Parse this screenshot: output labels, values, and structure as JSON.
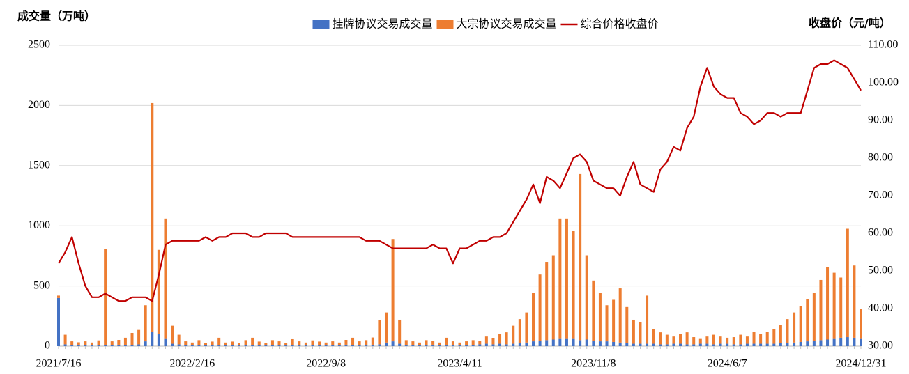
{
  "chart_data": {
    "type": "combo",
    "stacked": true,
    "legend": "top",
    "grid": true,
    "y_label": "成交量（万吨）",
    "y2_label": "收盘价（元/吨）",
    "categories": [
      "2021/7/16",
      null,
      null,
      null,
      null,
      null,
      null,
      null,
      null,
      null,
      null,
      null,
      null,
      null,
      null,
      null,
      null,
      null,
      null,
      null,
      "2022/2/16",
      null,
      null,
      null,
      null,
      null,
      null,
      null,
      null,
      null,
      null,
      null,
      null,
      null,
      null,
      null,
      null,
      null,
      null,
      null,
      "2022/9/8",
      null,
      null,
      null,
      null,
      null,
      null,
      null,
      null,
      null,
      null,
      null,
      null,
      null,
      null,
      null,
      null,
      null,
      null,
      null,
      "2023/4/11",
      null,
      null,
      null,
      null,
      null,
      null,
      null,
      null,
      null,
      null,
      null,
      null,
      null,
      null,
      null,
      null,
      null,
      null,
      null,
      "2023/11/8",
      null,
      null,
      null,
      null,
      null,
      null,
      null,
      null,
      null,
      null,
      null,
      null,
      null,
      null,
      null,
      null,
      null,
      null,
      null,
      "2024/6/7",
      null,
      null,
      null,
      null,
      null,
      null,
      null,
      null,
      null,
      null,
      null,
      null,
      null,
      null,
      null,
      null,
      null,
      null,
      null,
      "2024/12/31"
    ],
    "ylim": [
      0,
      2500
    ],
    "yticks": [
      0,
      500,
      1000,
      1500,
      2000,
      2500
    ],
    "y2lim": [
      30,
      110
    ],
    "y2ticks": [
      {
        "value": 30,
        "label": "30.00"
      },
      {
        "value": 40,
        "label": "40.00"
      },
      {
        "value": 50,
        "label": "50.00"
      },
      {
        "value": 60,
        "label": "60.00"
      },
      {
        "value": 70,
        "label": "70.00"
      },
      {
        "value": 80,
        "label": "80.00"
      },
      {
        "value": 90,
        "label": "90.00"
      },
      {
        "value": 100,
        "label": "100.00"
      },
      {
        "value": 110,
        "label": "110.00"
      }
    ],
    "series": [
      {
        "name": "挂牌协议交易成交量",
        "type": "bar",
        "color": "#4472c4",
        "values": [
          400,
          15,
          10,
          12,
          10,
          10,
          8,
          10,
          10,
          12,
          10,
          10,
          15,
          40,
          120,
          100,
          60,
          20,
          15,
          10,
          10,
          10,
          8,
          8,
          10,
          10,
          8,
          8,
          10,
          10,
          8,
          8,
          10,
          10,
          8,
          8,
          10,
          10,
          8,
          8,
          10,
          10,
          10,
          12,
          10,
          10,
          10,
          12,
          15,
          30,
          40,
          20,
          10,
          10,
          10,
          10,
          12,
          10,
          10,
          10,
          10,
          10,
          10,
          15,
          20,
          15,
          20,
          15,
          20,
          25,
          30,
          40,
          45,
          50,
          55,
          60,
          60,
          60,
          50,
          55,
          45,
          40,
          40,
          35,
          30,
          25,
          20,
          20,
          20,
          20,
          15,
          15,
          20,
          20,
          15,
          15,
          20,
          20,
          15,
          20,
          20,
          15,
          15,
          20,
          20,
          20,
          20,
          20,
          25,
          25,
          30,
          35,
          40,
          45,
          50,
          55,
          60,
          70,
          75,
          70,
          60
        ]
      },
      {
        "name": "大宗协议交易成交量",
        "type": "bar",
        "color": "#ed7d31",
        "values": [
          20,
          80,
          30,
          20,
          30,
          20,
          40,
          800,
          30,
          40,
          60,
          100,
          120,
          300,
          1900,
          700,
          1000,
          150,
          80,
          30,
          20,
          40,
          20,
          30,
          60,
          20,
          30,
          20,
          40,
          60,
          30,
          20,
          40,
          30,
          20,
          50,
          30,
          20,
          40,
          30,
          20,
          30,
          20,
          40,
          60,
          30,
          40,
          60,
          200,
          250,
          850,
          200,
          40,
          30,
          20,
          40,
          30,
          20,
          60,
          30,
          20,
          30,
          40,
          30,
          60,
          50,
          80,
          100,
          150,
          200,
          250,
          400,
          550,
          650,
          700,
          1000,
          1000,
          900,
          1380,
          700,
          500,
          400,
          300,
          350,
          450,
          300,
          200,
          180,
          400,
          120,
          100,
          80,
          60,
          80,
          100,
          60,
          40,
          60,
          80,
          60,
          50,
          60,
          80,
          60,
          100,
          80,
          100,
          120,
          150,
          200,
          250,
          300,
          350,
          400,
          500,
          600,
          550,
          500,
          900,
          600,
          250
        ]
      },
      {
        "name": "综合价格收盘价",
        "type": "line",
        "axis": "y2",
        "color": "#c00000",
        "values": [
          52,
          55,
          59,
          52,
          46,
          43,
          43,
          44,
          43,
          42,
          42,
          43,
          43,
          43,
          42,
          49,
          57,
          58,
          58,
          58,
          58,
          58,
          59,
          58,
          59,
          59,
          60,
          60,
          60,
          59,
          59,
          60,
          60,
          60,
          60,
          59,
          59,
          59,
          59,
          59,
          59,
          59,
          59,
          59,
          59,
          59,
          58,
          58,
          58,
          57,
          56,
          56,
          56,
          56,
          56,
          56,
          57,
          56,
          56,
          52,
          56,
          56,
          57,
          58,
          58,
          59,
          59,
          60,
          63,
          66,
          69,
          73,
          68,
          75,
          74,
          72,
          76,
          80,
          81,
          79,
          74,
          73,
          72,
          72,
          70,
          75,
          79,
          73,
          72,
          71,
          77,
          79,
          83,
          82,
          88,
          91,
          99,
          104,
          99,
          97,
          96,
          96,
          92,
          91,
          89,
          90,
          92,
          92,
          91,
          92,
          92,
          92,
          98,
          104,
          105,
          105,
          106,
          105,
          104,
          101,
          98
        ]
      }
    ]
  }
}
